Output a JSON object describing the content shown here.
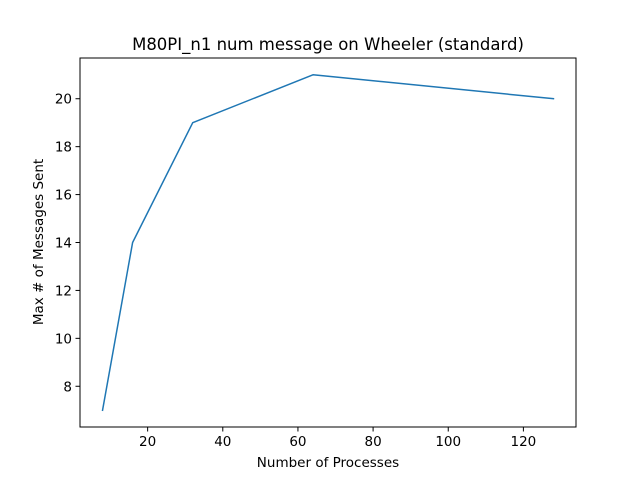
{
  "chart_data": {
    "type": "line",
    "title": "M80PI_n1 num message on Wheeler (standard)",
    "xlabel": "Number of Processes",
    "ylabel": "Max # of Messages Sent",
    "xlim": [
      2,
      134
    ],
    "ylim": [
      6.3,
      21.7
    ],
    "xticks": [
      20,
      40,
      60,
      80,
      100,
      120
    ],
    "yticks": [
      8,
      10,
      12,
      14,
      16,
      18,
      20
    ],
    "grid": false,
    "series": [
      {
        "color": "#1f77b4",
        "x": [
          8,
          16,
          32,
          64,
          128
        ],
        "y": [
          7,
          14,
          19,
          21,
          20
        ]
      }
    ]
  }
}
